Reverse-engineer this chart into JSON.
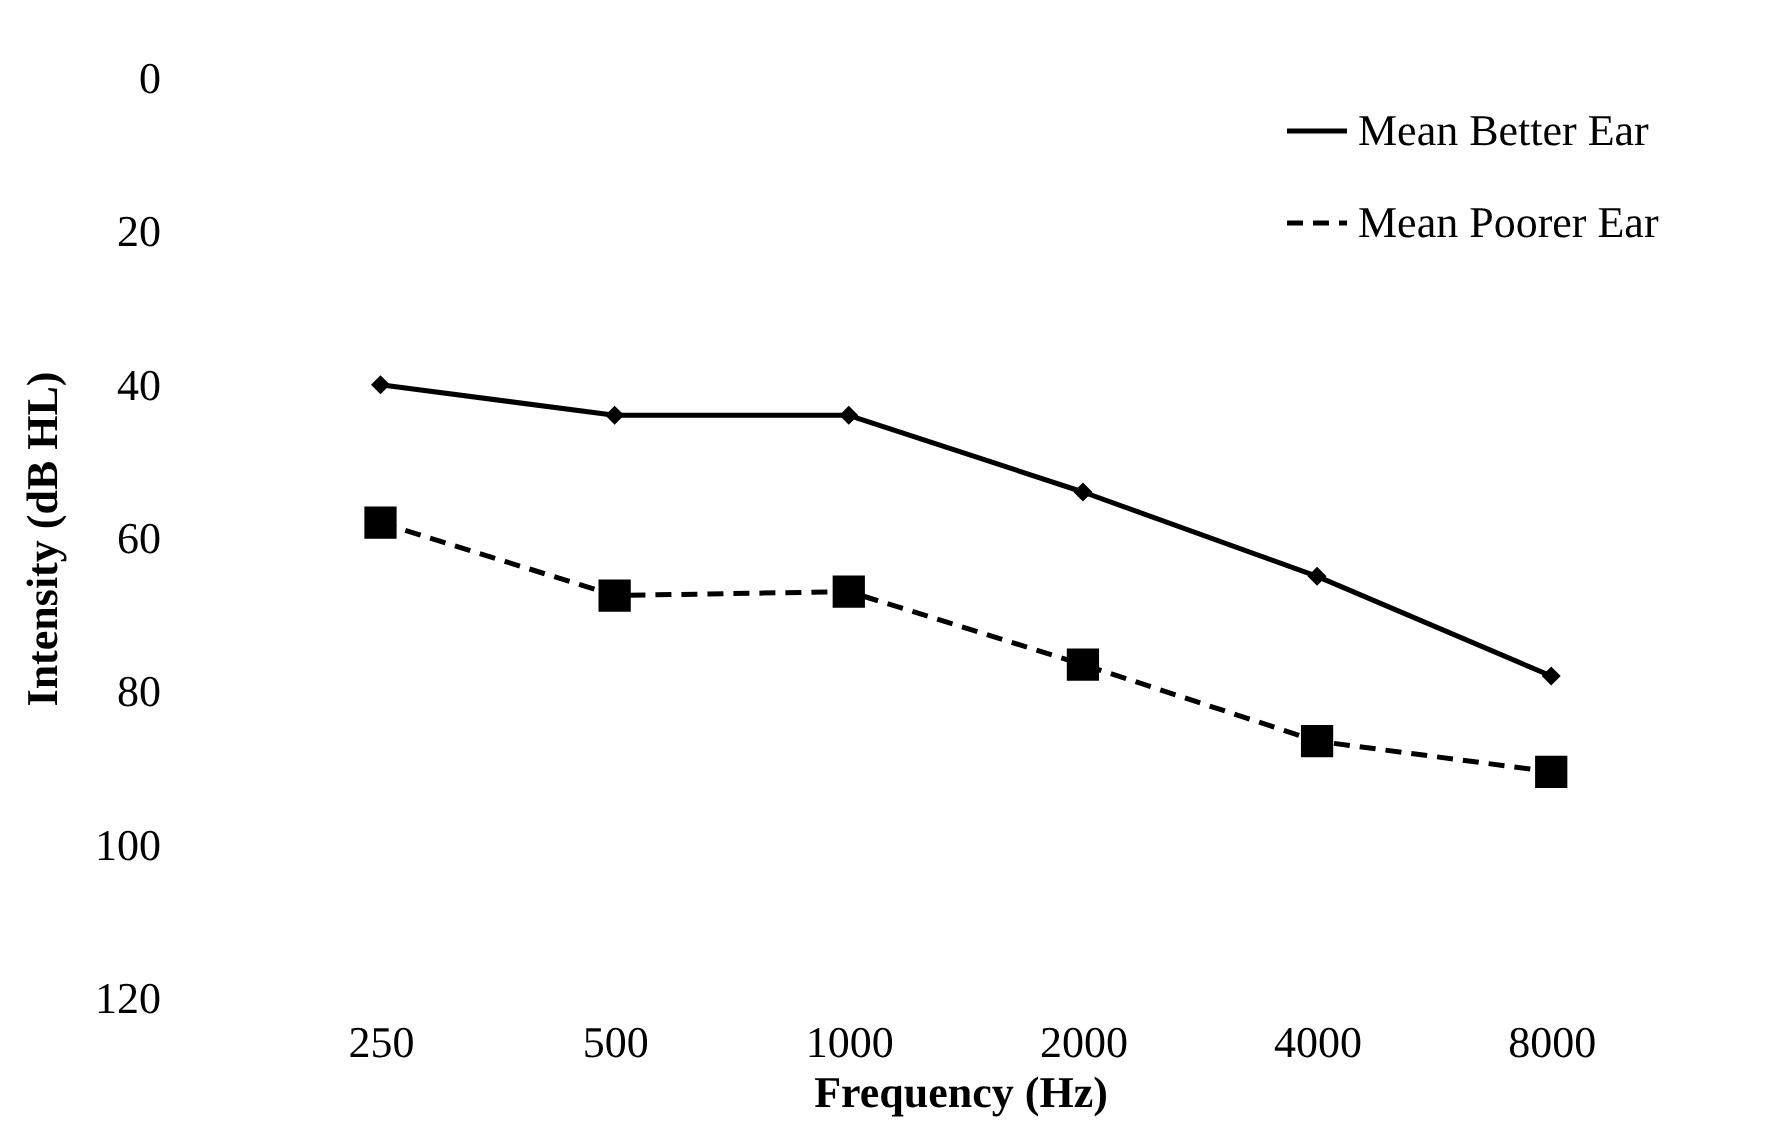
{
  "chart_data": {
    "type": "line",
    "xlabel": "Frequency (Hz)",
    "ylabel": "Intensity (dB HL)",
    "categories": [
      "250",
      "500",
      "1000",
      "2000",
      "4000",
      "8000"
    ],
    "ylim": [
      120,
      0
    ],
    "yticks": [
      0,
      20,
      40,
      60,
      80,
      100,
      120
    ],
    "grid": false,
    "legend": "top right",
    "series": [
      {
        "name": "Mean Better Ear",
        "color": "#000000",
        "marker": "diamond",
        "line_style": "solid",
        "values": [
          40,
          44,
          44,
          54,
          65,
          78
        ]
      },
      {
        "name": "Mean Poorer Ear",
        "color": "#000000",
        "marker": "square",
        "line_style": "dashed",
        "values": [
          58,
          67.5,
          67,
          76.5,
          86.5,
          90.5
        ]
      }
    ]
  }
}
